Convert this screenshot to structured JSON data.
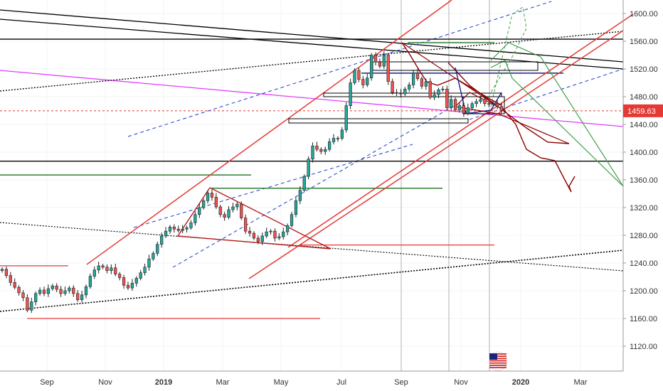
{
  "chart_data": {
    "type": "candlestick",
    "y_axis": {
      "ticks": [
        "1600.00",
        "1560.00",
        "1520.00",
        "1480.00",
        "1440.00",
        "1400.00",
        "1360.00",
        "1320.00",
        "1280.00",
        "1240.00",
        "1200.00",
        "1160.00",
        "1120.00"
      ],
      "range": [
        1095,
        1615
      ]
    },
    "x_axis": {
      "labels": [
        {
          "text": "Sep",
          "bold": false
        },
        {
          "text": "Nov",
          "bold": false
        },
        {
          "text": "2019",
          "bold": true
        },
        {
          "text": "Mar",
          "bold": false
        },
        {
          "text": "May",
          "bold": false
        },
        {
          "text": "Jul",
          "bold": false
        },
        {
          "text": "Sep",
          "bold": false
        },
        {
          "text": "Nov",
          "bold": false
        },
        {
          "text": "2020",
          "bold": true
        },
        {
          "text": "Mar",
          "bold": false
        }
      ]
    },
    "last_price": "1459.63",
    "series": [
      {
        "values": [
          1231,
          1222,
          1212,
          1205,
          1197,
          1190,
          1172,
          1184,
          1196,
          1201,
          1196,
          1203,
          1207,
          1202,
          1196,
          1200,
          1204,
          1196,
          1187,
          1194,
          1206,
          1221,
          1230,
          1236,
          1234,
          1229,
          1233,
          1224,
          1219,
          1208,
          1204,
          1211,
          1218,
          1226,
          1234,
          1246,
          1254,
          1267,
          1279,
          1286,
          1292,
          1289,
          1287,
          1289,
          1291,
          1298,
          1310,
          1320,
          1330,
          1341,
          1335,
          1321,
          1310,
          1306,
          1317,
          1321,
          1325,
          1305,
          1286,
          1283,
          1276,
          1271,
          1279,
          1285,
          1286,
          1276,
          1278,
          1285,
          1294,
          1310,
          1330,
          1345,
          1365,
          1390,
          1409,
          1404,
          1401,
          1404,
          1415,
          1420,
          1420,
          1432,
          1467,
          1500,
          1518,
          1505,
          1497,
          1507,
          1540,
          1530,
          1524,
          1540,
          1502,
          1486,
          1485,
          1484,
          1491,
          1497,
          1514,
          1506,
          1495,
          1502,
          1479,
          1483,
          1490,
          1491,
          1464,
          1476,
          1461,
          1467,
          1456,
          1464,
          1470,
          1473,
          1476,
          1470,
          1470,
          1470,
          1466,
          1460
        ]
      }
    ],
    "horizontal_levels": [
      {
        "value": 1563,
        "color": "#000000"
      },
      {
        "value": 1387,
        "color": "#000000"
      },
      {
        "value": 1459.63,
        "color": "#e53935"
      },
      {
        "value": 1367,
        "color": "#2e7d32"
      },
      {
        "value": 1348,
        "color": "#2e7d32"
      },
      {
        "value": 1558,
        "color": "#2e7d32"
      },
      {
        "value": 1514,
        "color": "#1a237e"
      },
      {
        "value": 1236,
        "color": "#e53935"
      },
      {
        "value": 1160,
        "color": "#e53935"
      },
      {
        "value": 1266,
        "color": "#e53935"
      }
    ],
    "up_color": "#26a69a",
    "down_color": "#ef5350",
    "grid": true
  }
}
